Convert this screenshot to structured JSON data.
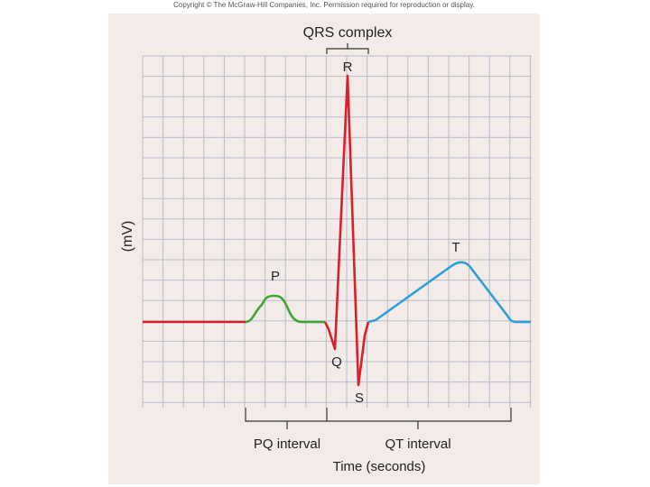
{
  "copyright": "Copyright © The McGraw-Hill Companies, Inc. Permission required for reproduction or display.",
  "labels": {
    "qrs_complex": "QRS complex",
    "r": "R",
    "p": "P",
    "t": "T",
    "q": "Q",
    "s": "S",
    "y_axis": "(mV)",
    "pq_interval": "PQ interval",
    "qt_interval": "QT interval",
    "x_axis": "Time (seconds)"
  },
  "colors": {
    "grid": "#b9bcc8",
    "baseline_qrs": "#d8202a",
    "p_wave": "#3fa535",
    "t_wave": "#2a9fd8",
    "panel": "#f3ebe8"
  }
}
